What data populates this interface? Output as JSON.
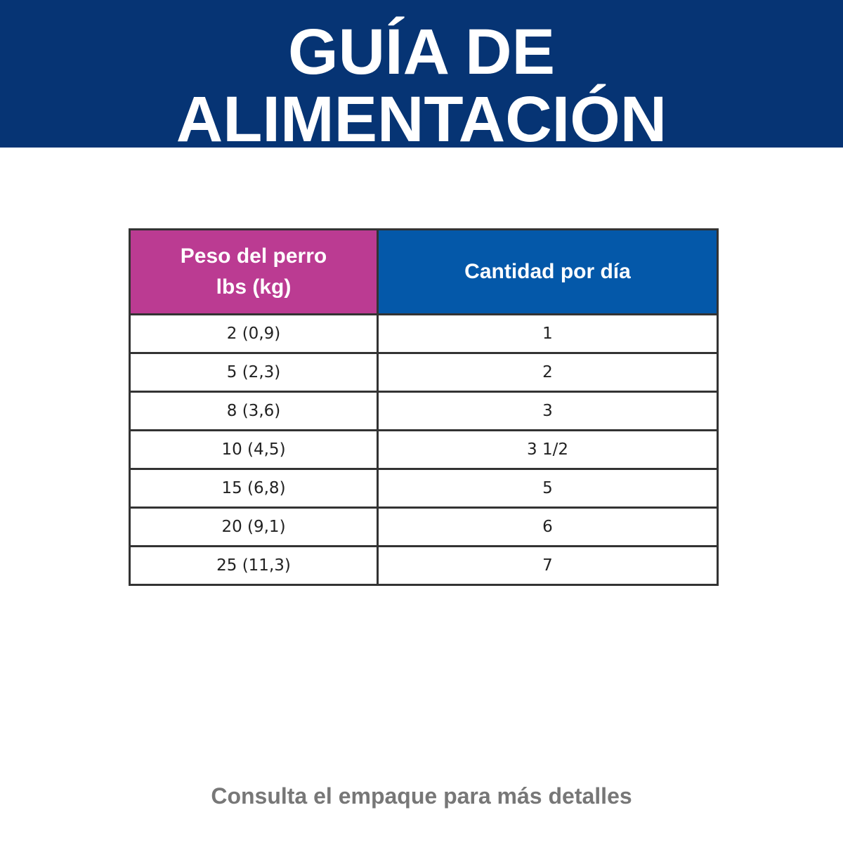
{
  "header": {
    "title_lines": [
      "GUÍA DE",
      "ALIMENTACIÓN"
    ]
  },
  "table": {
    "headers": [
      "Peso del perro",
      "lbs (kg)",
      "Cantidad por día"
    ],
    "rows": [
      [
        "2 (0,9)",
        "1"
      ],
      [
        "5 (2,3)",
        "2"
      ],
      [
        "8 (3,6)",
        "3"
      ],
      [
        "10 (4,5)",
        "3 1/2"
      ],
      [
        "15 (6,8)",
        "5"
      ],
      [
        "20 (9,1)",
        "6"
      ],
      [
        "25 (11,3)",
        "7"
      ]
    ]
  },
  "footer": {
    "note": "Consulta el empaque para más detalles"
  }
}
